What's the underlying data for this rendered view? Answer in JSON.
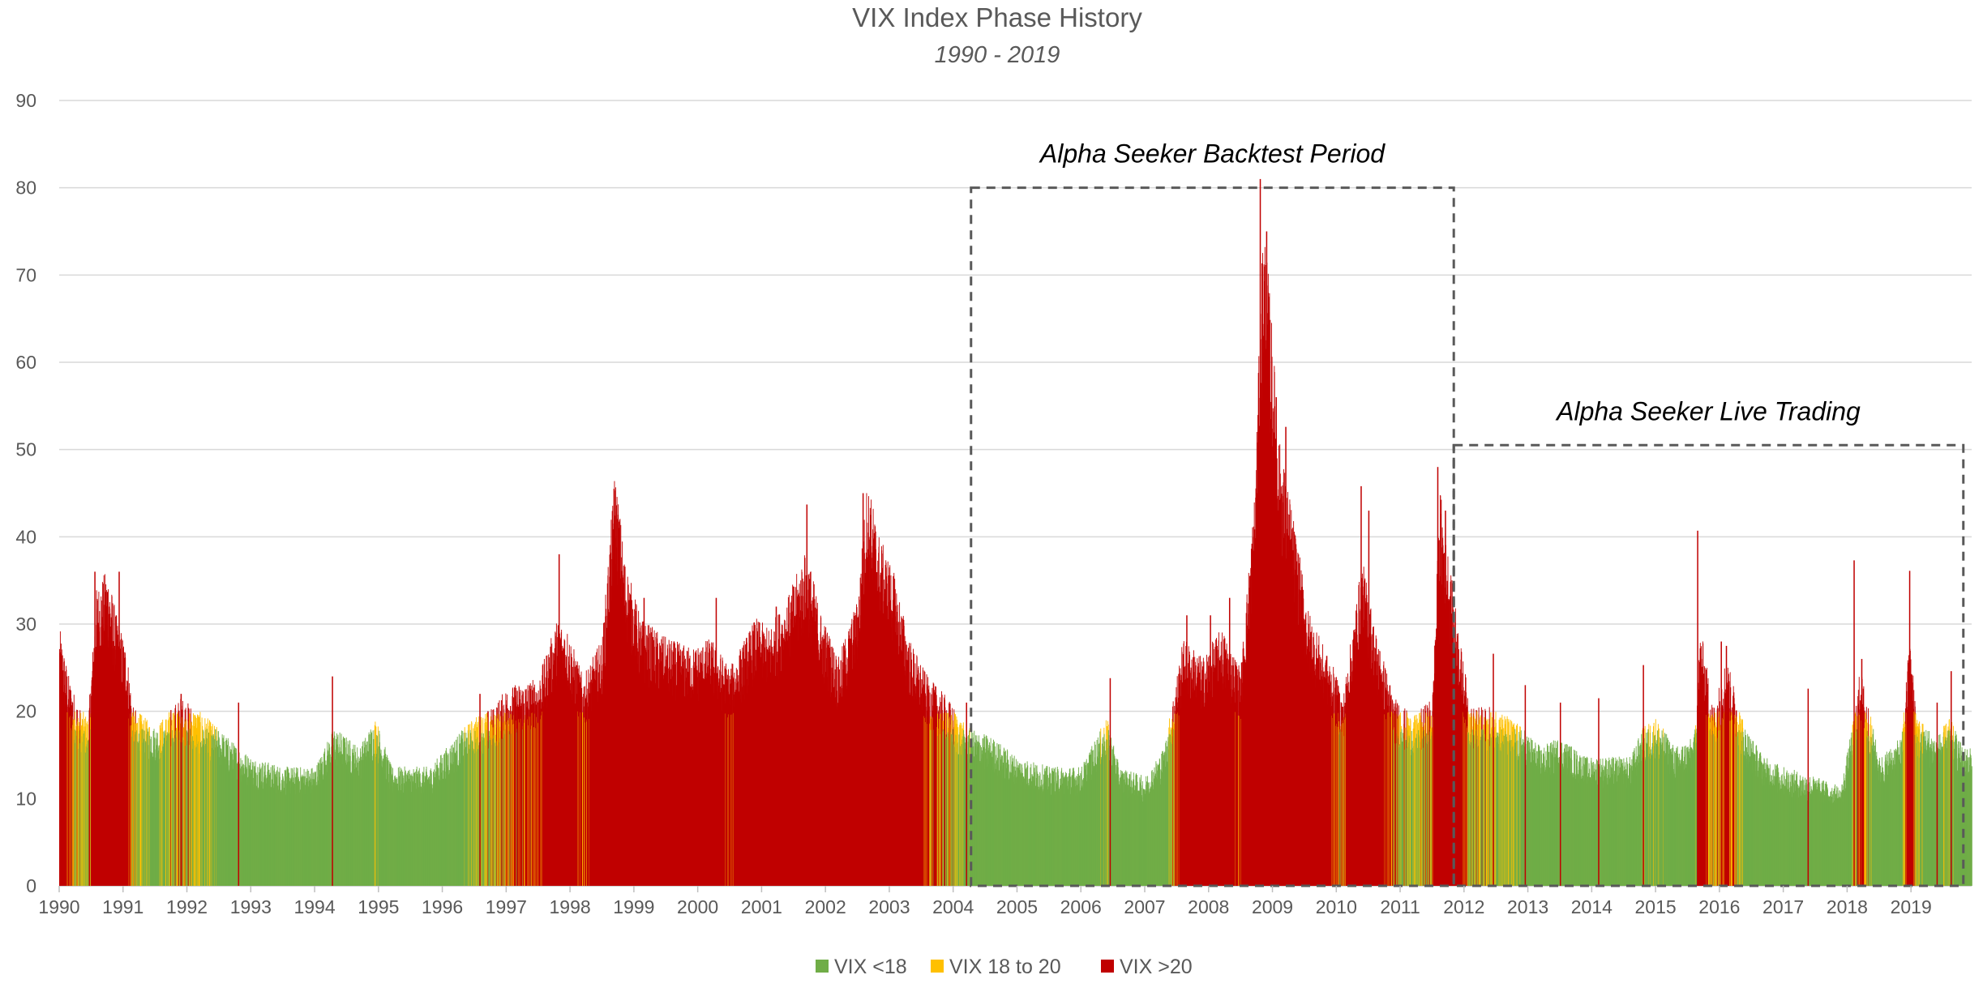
{
  "chart_data": {
    "type": "bar",
    "title": "VIX Index Phase History",
    "subtitle": "1990 - 2019",
    "xlabel": "",
    "ylabel": "",
    "ylim": [
      0,
      90
    ],
    "yticks": [
      0,
      10,
      20,
      30,
      40,
      50,
      60,
      70,
      80,
      90
    ],
    "x_range": [
      1990,
      2019.95
    ],
    "xtick_labels": [
      "1990",
      "1991",
      "1992",
      "1993",
      "1994",
      "1995",
      "1996",
      "1997",
      "1998",
      "1999",
      "2000",
      "2001",
      "2002",
      "2003",
      "2004",
      "2005",
      "2006",
      "2007",
      "2008",
      "2009",
      "2010",
      "2011",
      "2012",
      "2013",
      "2014",
      "2015",
      "2016",
      "2017",
      "2018",
      "2019"
    ],
    "grid": "horizontal",
    "legend_position": "bottom",
    "series_colors": {
      "low": "#70AD47",
      "mid": "#FFC000",
      "high": "#C00000"
    },
    "legend": [
      {
        "label": "VIX <18",
        "color": "#70AD47"
      },
      {
        "label": "VIX 18 to 20",
        "color": "#FFC000"
      },
      {
        "label": "VIX >20",
        "color": "#C00000"
      }
    ],
    "thresholds": [
      18,
      20
    ],
    "vix_profile": [
      [
        1990.0,
        26
      ],
      [
        1990.15,
        21
      ],
      [
        1990.3,
        18
      ],
      [
        1990.45,
        17
      ],
      [
        1990.58,
        30
      ],
      [
        1990.75,
        32
      ],
      [
        1990.9,
        27
      ],
      [
        1991.05,
        24
      ],
      [
        1991.15,
        18
      ],
      [
        1991.5,
        16
      ],
      [
        1991.9,
        19
      ],
      [
        1992.3,
        17
      ],
      [
        1992.8,
        14
      ],
      [
        1993.0,
        13
      ],
      [
        1993.5,
        12
      ],
      [
        1994.0,
        12
      ],
      [
        1994.3,
        16
      ],
      [
        1994.7,
        14
      ],
      [
        1994.95,
        17
      ],
      [
        1995.2,
        12
      ],
      [
        1995.8,
        12
      ],
      [
        1996.2,
        15
      ],
      [
        1996.5,
        17
      ],
      [
        1996.8,
        18
      ],
      [
        1997.0,
        20
      ],
      [
        1997.5,
        21
      ],
      [
        1997.8,
        27
      ],
      [
        1997.95,
        26
      ],
      [
        1998.2,
        21
      ],
      [
        1998.5,
        25
      ],
      [
        1998.7,
        42
      ],
      [
        1998.85,
        33
      ],
      [
        1999.1,
        27
      ],
      [
        1999.5,
        25
      ],
      [
        1999.9,
        24
      ],
      [
        2000.2,
        25
      ],
      [
        2000.5,
        22
      ],
      [
        2000.9,
        27
      ],
      [
        2001.1,
        26
      ],
      [
        2001.4,
        29
      ],
      [
        2001.7,
        34
      ],
      [
        2001.9,
        28
      ],
      [
        2002.2,
        23
      ],
      [
        2002.5,
        29
      ],
      [
        2002.65,
        41
      ],
      [
        2002.85,
        35
      ],
      [
        2003.05,
        32
      ],
      [
        2003.3,
        25
      ],
      [
        2003.6,
        21
      ],
      [
        2003.9,
        19
      ],
      [
        2004.2,
        16
      ],
      [
        2004.6,
        15
      ],
      [
        2005.0,
        13
      ],
      [
        2005.5,
        12
      ],
      [
        2006.0,
        12
      ],
      [
        2006.4,
        17
      ],
      [
        2006.6,
        12
      ],
      [
        2007.0,
        11
      ],
      [
        2007.3,
        14
      ],
      [
        2007.6,
        25
      ],
      [
        2007.9,
        23
      ],
      [
        2008.2,
        26
      ],
      [
        2008.5,
        22
      ],
      [
        2008.72,
        40
      ],
      [
        2008.85,
        68
      ],
      [
        2008.95,
        60
      ],
      [
        2009.1,
        45
      ],
      [
        2009.3,
        38
      ],
      [
        2009.55,
        28
      ],
      [
        2009.8,
        24
      ],
      [
        2009.95,
        22
      ],
      [
        2010.1,
        19
      ],
      [
        2010.4,
        33
      ],
      [
        2010.6,
        26
      ],
      [
        2010.9,
        19
      ],
      [
        2011.2,
        17
      ],
      [
        2011.5,
        19
      ],
      [
        2011.62,
        40
      ],
      [
        2011.8,
        31
      ],
      [
        2011.95,
        24
      ],
      [
        2012.1,
        18
      ],
      [
        2012.5,
        18
      ],
      [
        2012.9,
        16
      ],
      [
        2013.2,
        14
      ],
      [
        2013.5,
        15
      ],
      [
        2013.9,
        13
      ],
      [
        2014.3,
        13
      ],
      [
        2014.6,
        13
      ],
      [
        2014.8,
        16
      ],
      [
        2015.0,
        17
      ],
      [
        2015.3,
        14
      ],
      [
        2015.6,
        15
      ],
      [
        2015.7,
        26
      ],
      [
        2015.9,
        18
      ],
      [
        2016.1,
        23
      ],
      [
        2016.4,
        16
      ],
      [
        2016.7,
        13
      ],
      [
        2017.0,
        12
      ],
      [
        2017.5,
        11
      ],
      [
        2017.9,
        10
      ],
      [
        2018.1,
        17
      ],
      [
        2018.2,
        22
      ],
      [
        2018.5,
        13
      ],
      [
        2018.85,
        15
      ],
      [
        2018.97,
        25
      ],
      [
        2019.1,
        17
      ],
      [
        2019.4,
        15
      ],
      [
        2019.6,
        17
      ],
      [
        2019.8,
        14
      ],
      [
        2019.95,
        14
      ]
    ],
    "spikes": [
      [
        1990.55,
        36
      ],
      [
        1990.78,
        32
      ],
      [
        1990.93,
        36
      ],
      [
        1991.9,
        22
      ],
      [
        1992.8,
        21
      ],
      [
        1994.27,
        24
      ],
      [
        1996.58,
        22
      ],
      [
        1997.82,
        38
      ],
      [
        1998.68,
        45.5
      ],
      [
        1999.15,
        33
      ],
      [
        2000.28,
        33
      ],
      [
        2001.22,
        32
      ],
      [
        2001.7,
        43.7
      ],
      [
        2002.58,
        45
      ],
      [
        2002.7,
        42.5
      ],
      [
        2003.08,
        34
      ],
      [
        2003.6,
        22.5
      ],
      [
        2004.2,
        21
      ],
      [
        2006.45,
        23.8
      ],
      [
        2007.65,
        31
      ],
      [
        2008.02,
        31
      ],
      [
        2008.32,
        33
      ],
      [
        2008.8,
        81
      ],
      [
        2008.9,
        75
      ],
      [
        2009.05,
        56
      ],
      [
        2009.2,
        52.6
      ],
      [
        2010.38,
        45.8
      ],
      [
        2010.5,
        43
      ],
      [
        2011.58,
        48
      ],
      [
        2011.7,
        43
      ],
      [
        2012.45,
        26.6
      ],
      [
        2012.95,
        23
      ],
      [
        2013.5,
        21
      ],
      [
        2014.1,
        21.5
      ],
      [
        2014.8,
        25.3
      ],
      [
        2015.65,
        40.7
      ],
      [
        2016.02,
        28
      ],
      [
        2016.1,
        27.5
      ],
      [
        2017.38,
        22.6
      ],
      [
        2018.1,
        37.3
      ],
      [
        2018.22,
        26
      ],
      [
        2018.97,
        36.1
      ],
      [
        2019.4,
        21
      ],
      [
        2019.62,
        24.6
      ]
    ],
    "annotations": [
      {
        "label": "Alpha Seeker Backtest Period",
        "x0": 2004.28,
        "x1": 2011.84,
        "y1": 80
      },
      {
        "label": "Alpha Seeker Live Trading",
        "x0": 2011.84,
        "x1": 2019.82,
        "y1": 50.5
      }
    ]
  }
}
